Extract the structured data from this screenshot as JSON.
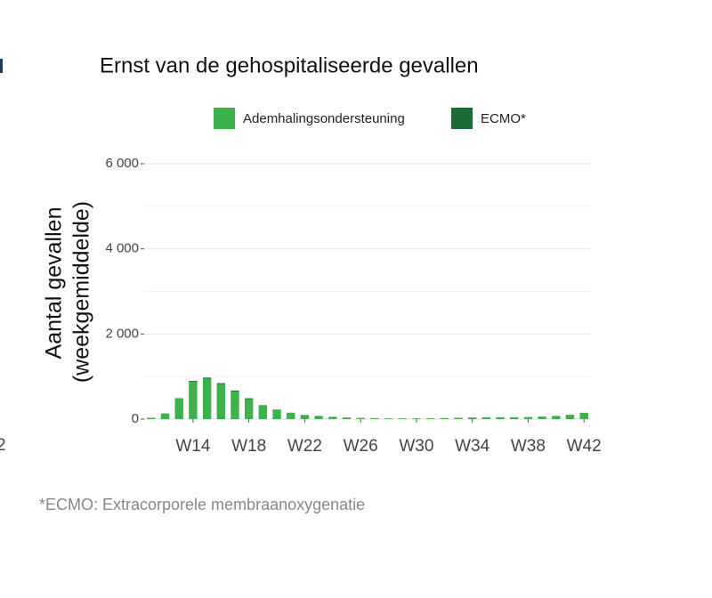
{
  "chart_data": {
    "type": "bar",
    "stacked": true,
    "title": "Ernst van de gehospitaliseerde gevallen",
    "y_label": [
      "Aantal gevallen",
      "(weekgemiddelde)"
    ],
    "footnote": "*ECMO: Extracorporele membraanoxygenatie",
    "categories": [
      null,
      null,
      null,
      "W14",
      null,
      null,
      null,
      "W18",
      null,
      null,
      null,
      "W22",
      null,
      null,
      null,
      "W26",
      null,
      null,
      null,
      "W30",
      null,
      null,
      null,
      "W34",
      null,
      null,
      null,
      "W38",
      null,
      null,
      null,
      "W42"
    ],
    "series": [
      {
        "name": "Ademhalingsondersteuning",
        "color": "#3cb34a",
        "values": [
          30,
          130,
          480,
          880,
          950,
          820,
          650,
          470,
          310,
          210,
          140,
          90,
          70,
          50,
          35,
          25,
          20,
          15,
          15,
          15,
          18,
          22,
          28,
          35,
          40,
          40,
          40,
          45,
          55,
          70,
          95,
          140
        ]
      },
      {
        "name": "ECMO*",
        "color": "#1b6b36",
        "values": [
          2,
          5,
          10,
          20,
          25,
          25,
          22,
          20,
          15,
          12,
          10,
          8,
          6,
          5,
          4,
          3,
          3,
          3,
          3,
          3,
          3,
          3,
          4,
          4,
          4,
          4,
          4,
          5,
          5,
          5,
          6,
          8
        ]
      }
    ],
    "ylim": [
      0,
      6000
    ],
    "yticks": [
      {
        "value": 0,
        "label": "0"
      },
      {
        "value": 2000,
        "label": "2 000"
      },
      {
        "value": 4000,
        "label": "4 000"
      },
      {
        "value": 6000,
        "label": "6 000"
      }
    ],
    "grid": true,
    "legend": "top"
  },
  "fragment": {
    "label": "2"
  }
}
